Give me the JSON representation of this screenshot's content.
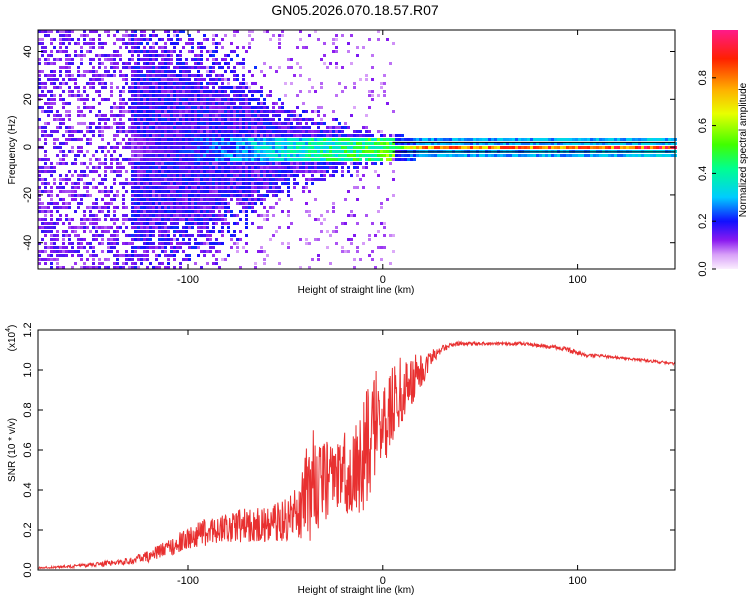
{
  "title": "GN05.2026.070.18.57.R07",
  "chart_data": [
    {
      "type": "heatmap",
      "name": "spectrogram",
      "xlabel": "Height of straight line (km)",
      "ylabel": "Frequency (Hz)",
      "xlim": [
        -177,
        150
      ],
      "ylim": [
        -51,
        49
      ],
      "xticks": [
        -100,
        0,
        100
      ],
      "yticks": [
        -40,
        -20,
        0,
        20,
        40
      ],
      "colorbar": {
        "label": "Normalized spectral amplitude",
        "range": [
          0.0,
          1.0
        ],
        "ticks": [
          0.0,
          0.2,
          0.4,
          0.6,
          0.8
        ]
      },
      "description_points": [
        {
          "x": -177,
          "spread_hz": 49,
          "level": 0.1
        },
        {
          "x": -130,
          "spread_hz": 49,
          "level": 0.12
        },
        {
          "x": -100,
          "spread_hz": 45,
          "level": 0.2
        },
        {
          "x": -50,
          "spread_hz": 15,
          "level": 0.35
        },
        {
          "x": 0,
          "spread_hz": 5,
          "level": 0.5
        },
        {
          "x": 20,
          "spread_hz": 2,
          "level": 0.85
        },
        {
          "x": 100,
          "spread_hz": 2,
          "level": 0.9
        },
        {
          "x": 150,
          "spread_hz": 2,
          "level": 0.95
        }
      ]
    },
    {
      "type": "line",
      "name": "snr",
      "xlabel": "Height of straight line (km)",
      "ylabel": "SNR (10 * v/v)",
      "scale_label": "(x10",
      "scale_exponent": "4",
      "xlim": [
        -177,
        150
      ],
      "ylim": [
        0.0,
        1.2
      ],
      "xticks": [
        -100,
        0,
        100
      ],
      "yticks": [
        "0.0",
        "0.2",
        "0.4",
        "0.6",
        "0.8",
        "1.0",
        "1.2"
      ],
      "series": [
        {
          "name": "SNR",
          "color": "#e83030",
          "x": [
            -177,
            -160,
            -140,
            -130,
            -120,
            -110,
            -100,
            -90,
            -80,
            -70,
            -60,
            -50,
            -45,
            -40,
            -35,
            -30,
            -25,
            -20,
            -15,
            -10,
            -5,
            0,
            5,
            10,
            15,
            20,
            25,
            30,
            35,
            40,
            50,
            60,
            70,
            80,
            90,
            95,
            100,
            105,
            110,
            120,
            130,
            140,
            150
          ],
          "y": [
            0.01,
            0.015,
            0.03,
            0.04,
            0.06,
            0.1,
            0.14,
            0.17,
            0.19,
            0.2,
            0.2,
            0.22,
            0.25,
            0.3,
            0.35,
            0.38,
            0.4,
            0.42,
            0.4,
            0.48,
            0.6,
            0.7,
            0.75,
            0.85,
            0.9,
            0.97,
            1.05,
            1.1,
            1.12,
            1.13,
            1.13,
            1.13,
            1.13,
            1.12,
            1.11,
            1.1,
            1.08,
            1.07,
            1.07,
            1.06,
            1.05,
            1.04,
            1.03
          ],
          "noise": [
            0.005,
            0.01,
            0.02,
            0.025,
            0.04,
            0.06,
            0.08,
            0.1,
            0.12,
            0.12,
            0.13,
            0.15,
            0.2,
            0.35,
            0.4,
            0.3,
            0.25,
            0.3,
            0.35,
            0.4,
            0.45,
            0.35,
            0.3,
            0.25,
            0.2,
            0.12,
            0.06,
            0.03,
            0.02,
            0.015,
            0.01,
            0.01,
            0.012,
            0.012,
            0.015,
            0.02,
            0.015,
            0.012,
            0.01,
            0.01,
            0.01,
            0.01,
            0.01
          ]
        }
      ]
    }
  ]
}
